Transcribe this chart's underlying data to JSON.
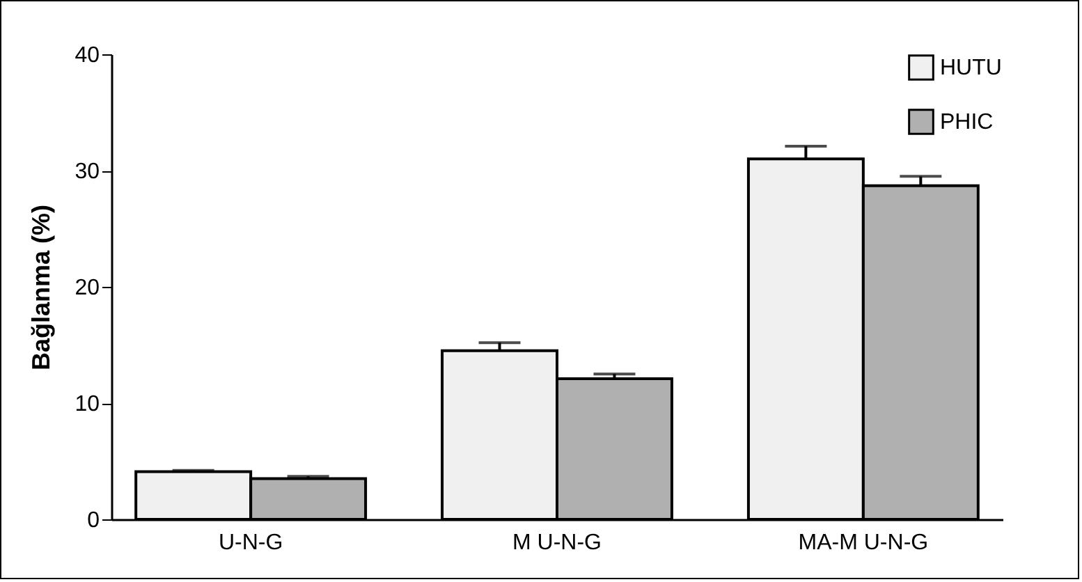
{
  "chart_data": {
    "type": "bar",
    "ylabel": "Bağlanma (%)",
    "categories": [
      "U-N-G",
      "M U-N-G",
      "MA-M U-N-G"
    ],
    "series": [
      {
        "name": "HUTU",
        "color": "#f0f0f0",
        "values": [
          4.1,
          14.5,
          31.0
        ],
        "errors": [
          0.1,
          0.7,
          1.1
        ]
      },
      {
        "name": "PHIC",
        "color": "#b0b0b0",
        "values": [
          3.5,
          12.1,
          28.7
        ],
        "errors": [
          0.2,
          0.4,
          0.8
        ]
      }
    ],
    "ylim": [
      0,
      40
    ],
    "yticks": [
      0,
      10,
      20,
      30,
      40
    ],
    "grid": false,
    "legend": "top right"
  }
}
